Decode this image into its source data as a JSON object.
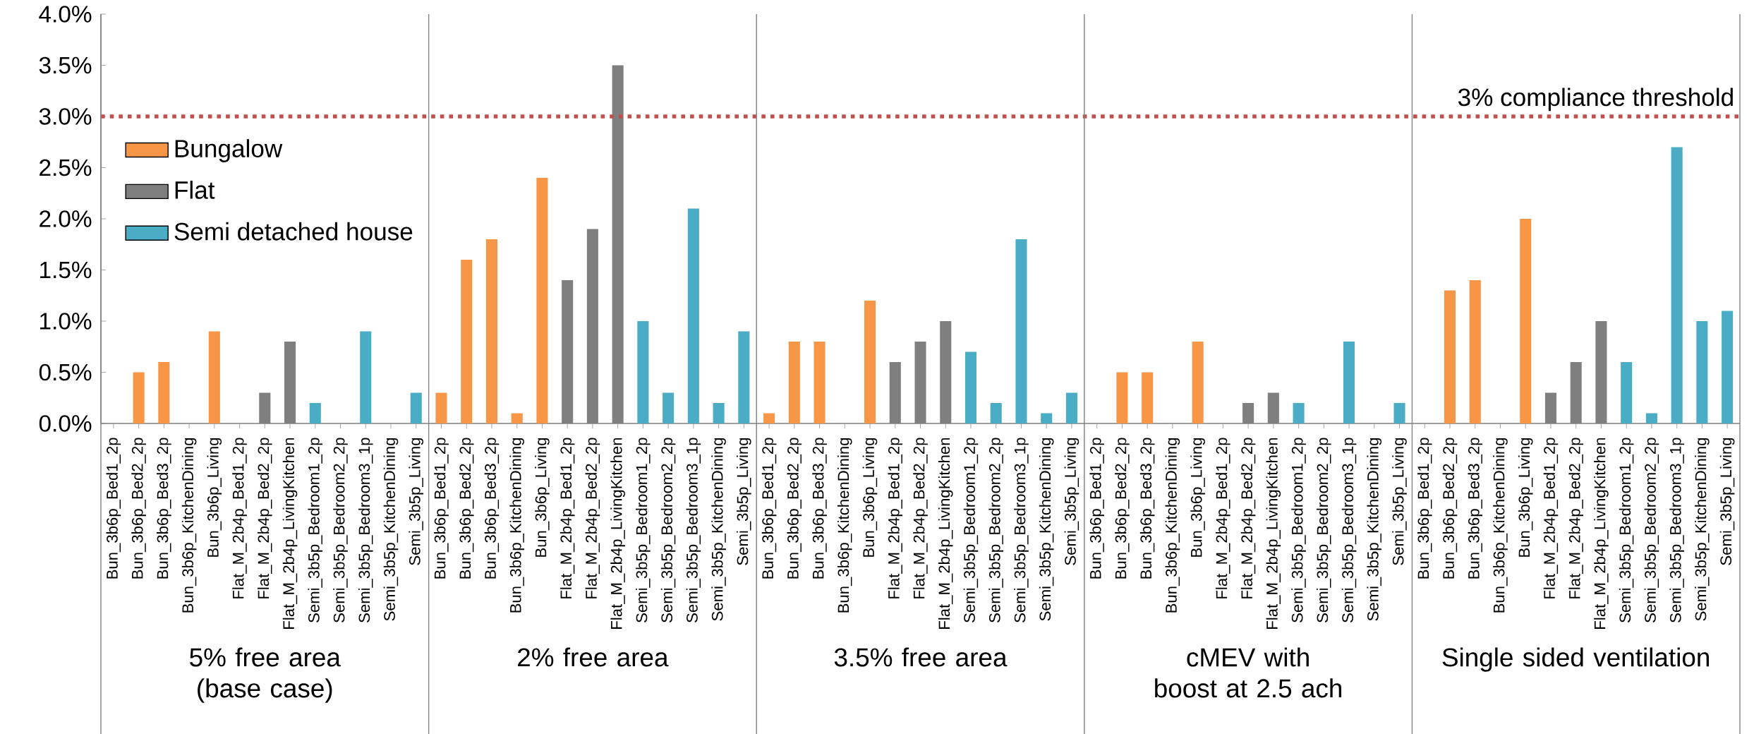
{
  "chart_data": {
    "type": "bar",
    "categories": [
      "Bun_3b6p_Bed1_2p",
      "Bun_3b6p_Bed2_2p",
      "Bun_3b6p_Bed3_2p",
      "Bun_3b6p_KitchenDining",
      "Bun_3b6p_Living",
      "Flat_M_2b4p_Bed1_2p",
      "Flat_M_2b4p_Bed2_2p",
      "Flat_M_2b4p_LivingKitchen",
      "Semi_3b5p_Bedroom1_2p",
      "Semi_3b5p_Bedroom2_2p",
      "Semi_3b5p_Bedroom3_1p",
      "Semi_3b5p_KitchenDining",
      "Semi_3b5p_Living",
      "Bun_3b6p_Bed1_2p",
      "Bun_3b6p_Bed2_2p",
      "Bun_3b6p_Bed3_2p",
      "Bun_3b6p_KitchenDining",
      "Bun_3b6p_Living",
      "Flat_M_2b4p_Bed1_2p",
      "Flat_M_2b4p_Bed2_2p",
      "Flat_M_2b4p_LivingKitchen",
      "Semi_3b5p_Bedroom1_2p",
      "Semi_3b5p_Bedroom2_2p",
      "Semi_3b5p_Bedroom3_1p",
      "Semi_3b5p_KitchenDining",
      "Semi_3b5p_Living",
      "Bun_3b6p_Bed1_2p",
      "Bun_3b6p_Bed2_2p",
      "Bun_3b6p_Bed3_2p",
      "Bun_3b6p_KitchenDining",
      "Bun_3b6p_Living",
      "Flat_M_2b4p_Bed1_2p",
      "Flat_M_2b4p_Bed2_2p",
      "Flat_M_2b4p_LivingKitchen",
      "Semi_3b5p_Bedroom1_2p",
      "Semi_3b5p_Bedroom2_2p",
      "Semi_3b5p_Bedroom3_1p",
      "Semi_3b5p_KitchenDining",
      "Semi_3b5p_Living",
      "Bun_3b6p_Bed1_2p",
      "Bun_3b6p_Bed2_2p",
      "Bun_3b6p_Bed3_2p",
      "Bun_3b6p_KitchenDining",
      "Bun_3b6p_Living",
      "Flat_M_2b4p_Bed1_2p",
      "Flat_M_2b4p_Bed2_2p",
      "Flat_M_2b4p_LivingKitchen",
      "Semi_3b5p_Bedroom1_2p",
      "Semi_3b5p_Bedroom2_2p",
      "Semi_3b5p_Bedroom3_1p",
      "Semi_3b5p_KitchenDining",
      "Semi_3b5p_Living",
      "Bun_3b6p_Bed1_2p",
      "Bun_3b6p_Bed2_2p",
      "Bun_3b6p_Bed3_2p",
      "Bun_3b6p_KitchenDining",
      "Bun_3b6p_Living",
      "Flat_M_2b4p_Bed1_2p",
      "Flat_M_2b4p_Bed2_2p",
      "Flat_M_2b4p_LivingKitchen",
      "Semi_3b5p_Bedroom1_2p",
      "Semi_3b5p_Bedroom2_2p",
      "Semi_3b5p_Bedroom3_1p",
      "Semi_3b5p_KitchenDining",
      "Semi_3b5p_Living"
    ],
    "series": [
      {
        "name": "Bungalow",
        "color": "#f79646",
        "values": [
          0,
          0.5,
          0.6,
          0,
          0.9,
          null,
          null,
          null,
          null,
          null,
          null,
          null,
          null,
          0.3,
          1.6,
          1.8,
          0.1,
          2.4,
          null,
          null,
          null,
          null,
          null,
          null,
          null,
          null,
          0.1,
          0.8,
          0.8,
          0,
          1.2,
          null,
          null,
          null,
          null,
          null,
          null,
          null,
          null,
          0,
          0.5,
          0.5,
          0,
          0.8,
          null,
          null,
          null,
          null,
          null,
          null,
          null,
          null,
          0,
          1.3,
          1.4,
          0,
          2.0,
          null,
          null,
          null,
          null,
          null,
          null,
          null,
          null
        ]
      },
      {
        "name": "Flat",
        "color": "#7f7f7f",
        "values": [
          null,
          null,
          null,
          null,
          null,
          0,
          0.3,
          0.8,
          null,
          null,
          null,
          null,
          null,
          null,
          null,
          null,
          null,
          null,
          1.4,
          1.9,
          3.5,
          null,
          null,
          null,
          null,
          null,
          null,
          null,
          null,
          null,
          null,
          0.6,
          0.8,
          1.0,
          null,
          null,
          null,
          null,
          null,
          null,
          null,
          null,
          null,
          null,
          0,
          0.2,
          0.3,
          null,
          null,
          null,
          null,
          null,
          null,
          null,
          null,
          null,
          null,
          0.3,
          0.6,
          1.0,
          null,
          null,
          null,
          null,
          null
        ]
      },
      {
        "name": "Semi detached house",
        "color": "#4bacc6",
        "values": [
          null,
          null,
          null,
          null,
          null,
          null,
          null,
          null,
          0.2,
          0,
          0.9,
          0,
          0.3,
          null,
          null,
          null,
          null,
          null,
          null,
          null,
          null,
          1.0,
          0.3,
          2.1,
          0.2,
          0.9,
          null,
          null,
          null,
          null,
          null,
          null,
          null,
          null,
          0.7,
          0.2,
          1.8,
          0.1,
          0.3,
          null,
          null,
          null,
          null,
          null,
          null,
          null,
          null,
          0.2,
          0,
          0.8,
          0,
          0.2,
          null,
          null,
          null,
          null,
          null,
          null,
          null,
          null,
          0.6,
          0.1,
          2.7,
          1.0,
          1.1
        ]
      }
    ],
    "ylim": [
      0,
      4
    ],
    "yticks": [
      {
        "value": 0,
        "label": "0.0%"
      },
      {
        "value": 0.5,
        "label": "0.5%"
      },
      {
        "value": 1,
        "label": "1.0%"
      },
      {
        "value": 1.5,
        "label": "1.5%"
      },
      {
        "value": 2,
        "label": "2.0%"
      },
      {
        "value": 2.5,
        "label": "2.5%"
      },
      {
        "value": 3,
        "label": "3.0%"
      },
      {
        "value": 3.5,
        "label": "3.5%"
      },
      {
        "value": 4,
        "label": "4.0%"
      }
    ],
    "ref_lines": [
      {
        "axis": "y",
        "value": 3,
        "label": "3% compliance threshold",
        "color": "#c0504d",
        "line_style": "dotted"
      }
    ],
    "annotations": [
      "5% free area (base case)",
      "2% free area",
      "3.5% free area",
      "cMEV with boost at 2.5 ach",
      "Single sided ventilation"
    ],
    "legend": "top left"
  }
}
